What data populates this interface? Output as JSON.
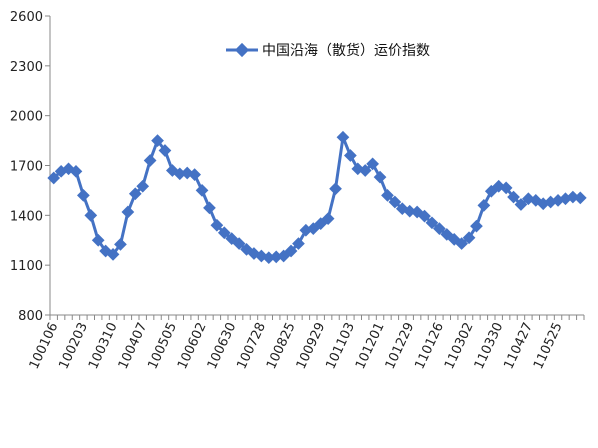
{
  "chart_data": {
    "type": "line",
    "title": "",
    "xlabel": "",
    "ylabel": "",
    "ylim": [
      800,
      2600
    ],
    "yticks": [
      800,
      1100,
      1400,
      1700,
      2000,
      2300,
      2600
    ],
    "grid": false,
    "legend_position": "top-center",
    "x_tick_labels": [
      "100106",
      "100203",
      "100310",
      "100407",
      "100505",
      "100602",
      "100630",
      "100728",
      "100825",
      "100929",
      "101103",
      "101201",
      "101229",
      "110126",
      "110302",
      "110330",
      "110427",
      "110525"
    ],
    "series": [
      {
        "name": "中国沿海（散货）运价指数",
        "color": "#4472C4",
        "values": [
          1625,
          1665,
          1680,
          1665,
          1520,
          1400,
          1250,
          1185,
          1165,
          1225,
          1420,
          1530,
          1575,
          1730,
          1850,
          1790,
          1670,
          1650,
          1655,
          1645,
          1550,
          1445,
          1340,
          1295,
          1260,
          1230,
          1195,
          1170,
          1155,
          1145,
          1150,
          1155,
          1185,
          1230,
          1310,
          1320,
          1350,
          1380,
          1560,
          1870,
          1760,
          1680,
          1670,
          1710,
          1630,
          1520,
          1480,
          1440,
          1425,
          1420,
          1395,
          1355,
          1320,
          1285,
          1255,
          1230,
          1265,
          1335,
          1460,
          1545,
          1575,
          1565,
          1510,
          1465,
          1500,
          1490,
          1470,
          1480,
          1490,
          1500,
          1510,
          1505
        ]
      }
    ]
  }
}
